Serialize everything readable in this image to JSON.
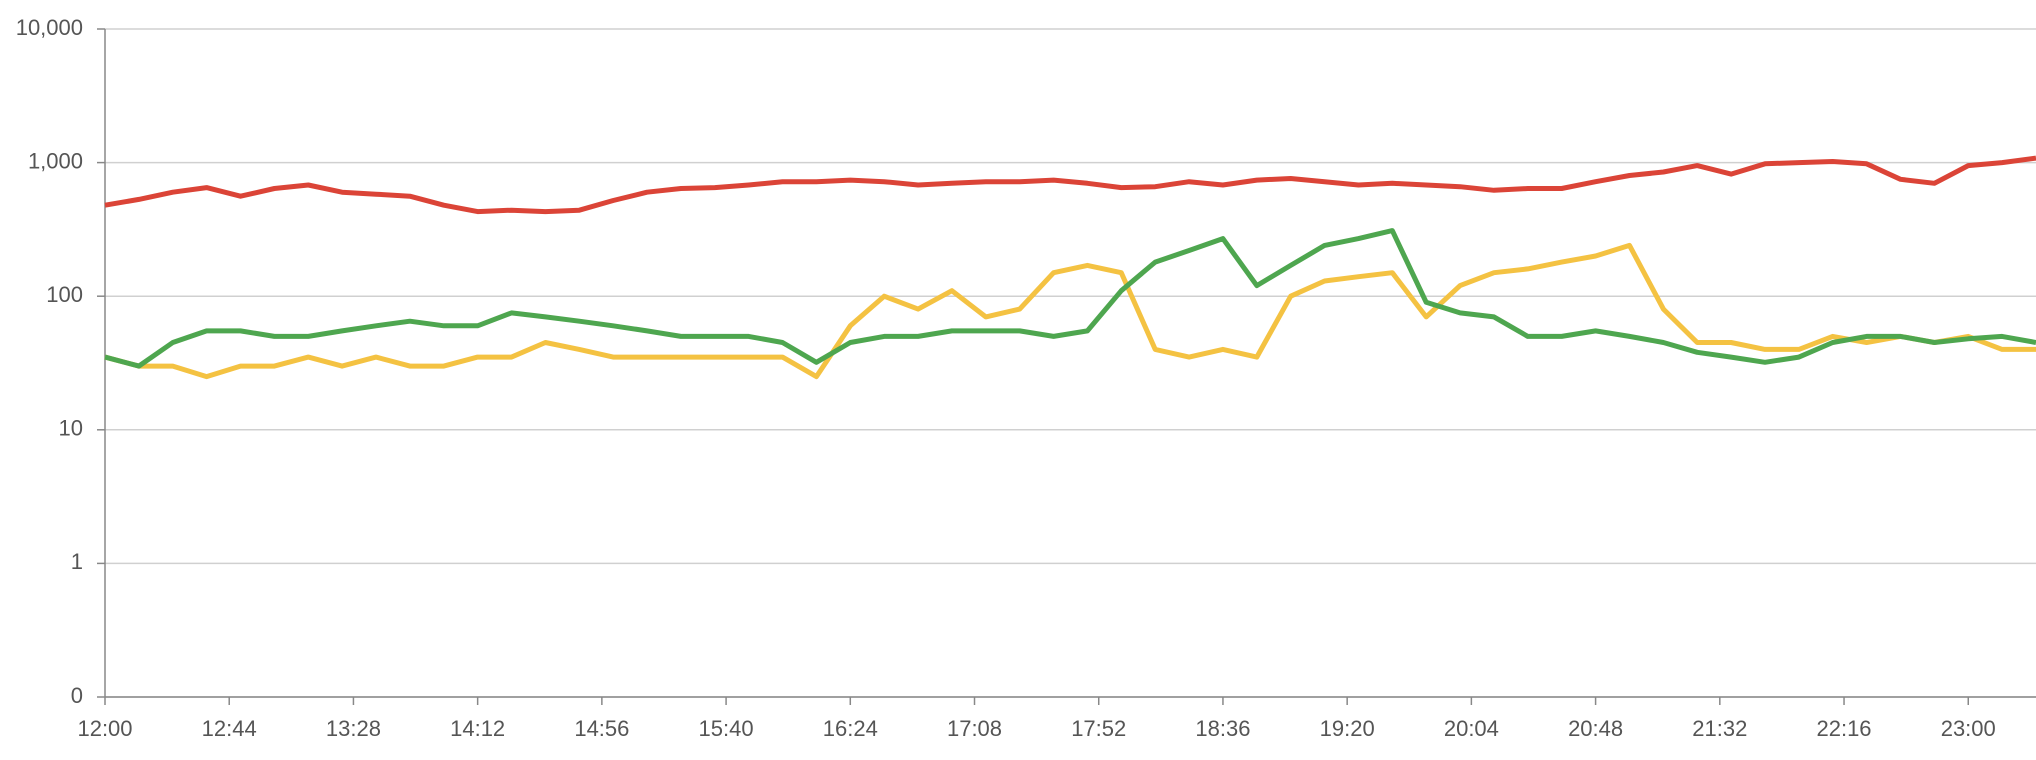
{
  "chart_data": {
    "type": "line",
    "x": [
      "12:00",
      "12:12",
      "12:24",
      "12:36",
      "12:48",
      "13:00",
      "13:12",
      "13:24",
      "13:36",
      "13:48",
      "14:00",
      "14:12",
      "14:24",
      "14:36",
      "14:48",
      "15:00",
      "15:12",
      "15:24",
      "15:36",
      "15:48",
      "16:00",
      "16:12",
      "16:24",
      "16:36",
      "16:48",
      "17:00",
      "17:12",
      "17:24",
      "17:36",
      "17:48",
      "18:00",
      "18:12",
      "18:24",
      "18:36",
      "18:48",
      "19:00",
      "19:12",
      "19:24",
      "19:36",
      "19:48",
      "20:00",
      "20:12",
      "20:24",
      "20:36",
      "20:48",
      "21:00",
      "21:12",
      "21:24",
      "21:36",
      "21:48",
      "22:00",
      "22:12",
      "22:24",
      "22:36",
      "22:48",
      "23:00",
      "23:12",
      "23:24"
    ],
    "series": [
      {
        "color": "#db4437",
        "values": [
          480,
          530,
          600,
          650,
          560,
          640,
          680,
          600,
          580,
          560,
          480,
          430,
          440,
          430,
          440,
          520,
          600,
          640,
          650,
          680,
          720,
          720,
          740,
          720,
          680,
          700,
          720,
          720,
          740,
          700,
          650,
          660,
          720,
          680,
          740,
          760,
          720,
          680,
          700,
          680,
          660,
          620,
          640,
          640,
          720,
          800,
          850,
          950,
          820,
          980,
          1000,
          1020,
          980,
          750,
          700,
          950,
          1000,
          1080
        ]
      },
      {
        "color": "#f4c242",
        "values": [
          35,
          30,
          30,
          25,
          30,
          30,
          35,
          30,
          35,
          30,
          30,
          35,
          35,
          45,
          40,
          35,
          35,
          35,
          35,
          35,
          35,
          25,
          60,
          100,
          80,
          110,
          70,
          80,
          150,
          170,
          150,
          40,
          35,
          40,
          35,
          100,
          130,
          140,
          150,
          70,
          120,
          150,
          160,
          180,
          200,
          240,
          80,
          45,
          45,
          40,
          40,
          50,
          45,
          50,
          45,
          50,
          40,
          40
        ]
      },
      {
        "color": "#4ea64f",
        "values": [
          35,
          30,
          45,
          55,
          55,
          50,
          50,
          55,
          60,
          65,
          60,
          60,
          75,
          70,
          65,
          60,
          55,
          50,
          50,
          50,
          45,
          32,
          45,
          50,
          50,
          55,
          55,
          55,
          50,
          55,
          110,
          180,
          220,
          270,
          120,
          170,
          240,
          270,
          310,
          90,
          75,
          70,
          50,
          50,
          55,
          50,
          45,
          38,
          35,
          32,
          35,
          45,
          50,
          50,
          45,
          48,
          50,
          45
        ]
      }
    ],
    "xlim": [
      "12:00",
      "23:24"
    ],
    "xticks": [
      "12:00",
      "12:44",
      "13:28",
      "14:12",
      "14:56",
      "15:40",
      "16:24",
      "17:08",
      "17:52",
      "18:36",
      "19:20",
      "20:04",
      "20:48",
      "21:32",
      "22:16",
      "23:00"
    ],
    "ylim": [
      0.1,
      10000
    ],
    "yticks": [
      {
        "value": 0.1,
        "label": "0"
      },
      1,
      10,
      100,
      {
        "value": 1000,
        "label": "1,000"
      },
      {
        "value": 10000,
        "label": "10,000"
      }
    ],
    "log_y": true,
    "grid": true
  }
}
